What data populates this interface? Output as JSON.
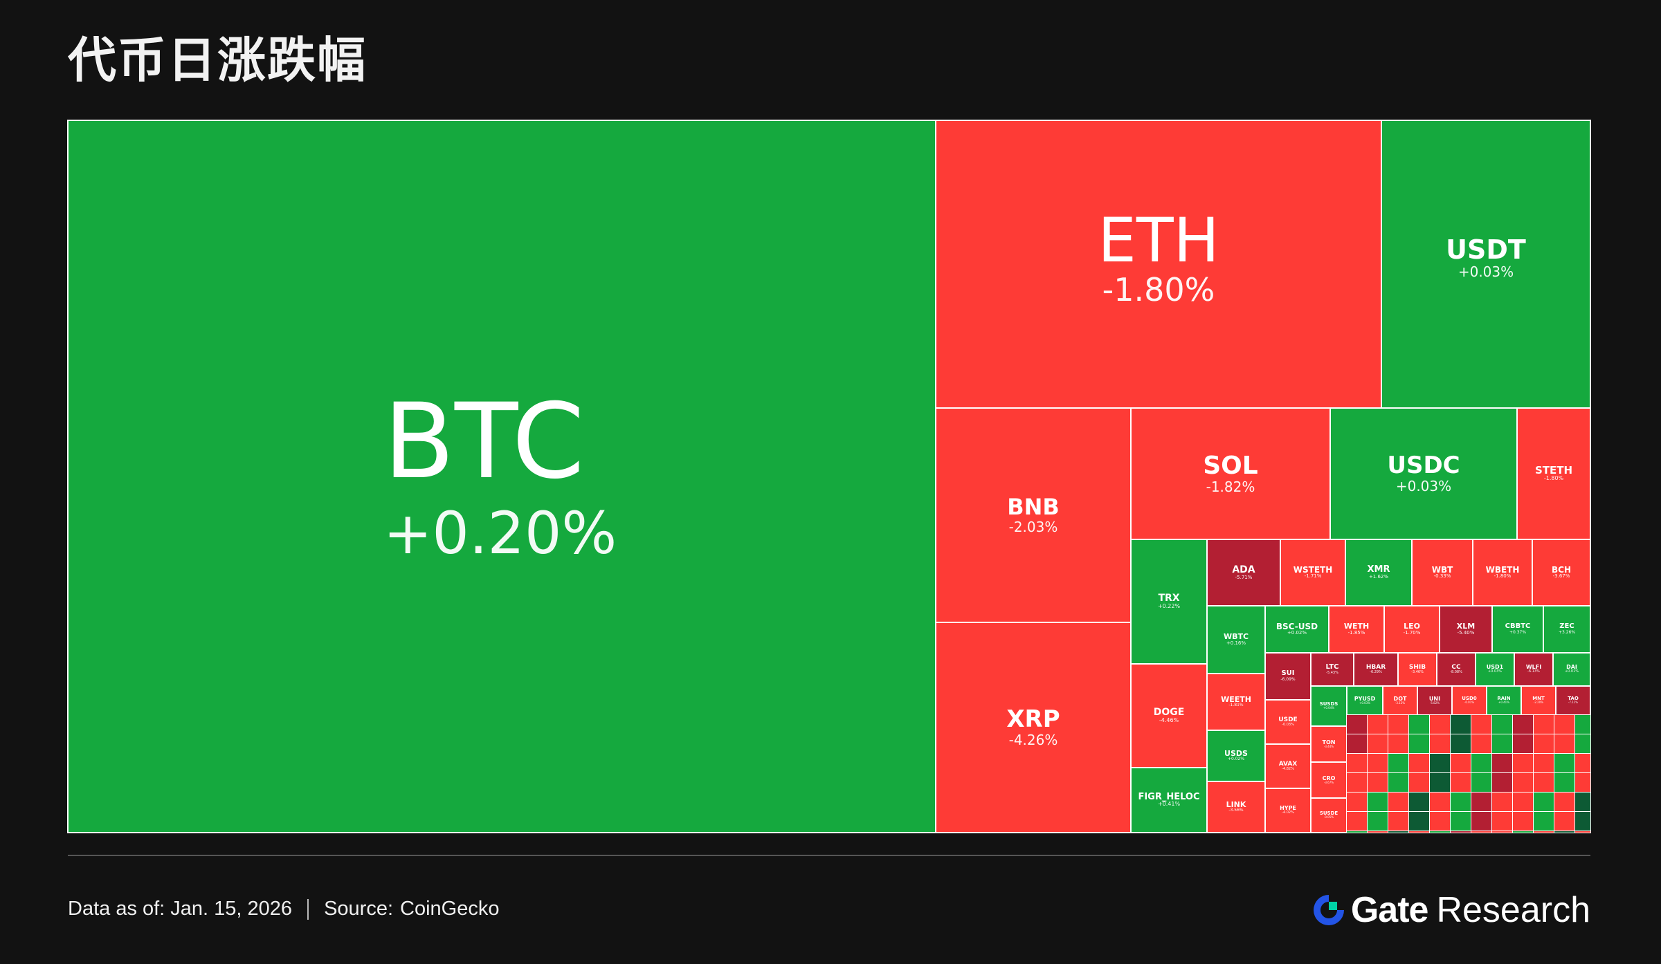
{
  "title": "代币日涨跌幅",
  "colors": {
    "up": "#15a93e",
    "down": "#fe3b36",
    "down_strong": "#b31f33",
    "up_strong": "#0d5a34",
    "background": "#121212",
    "brand_blue": "#2354e6"
  },
  "chart_data": {
    "type": "treemap",
    "tiles": [
      {
        "symbol": "BTC",
        "change": "+0.20%"
      },
      {
        "symbol": "ETH",
        "change": "-1.80%"
      },
      {
        "symbol": "USDT",
        "change": "+0.03%"
      },
      {
        "symbol": "BNB",
        "change": "-2.03%"
      },
      {
        "symbol": "SOL",
        "change": "-1.82%"
      },
      {
        "symbol": "USDC",
        "change": "+0.03%"
      },
      {
        "symbol": "STETH",
        "change": "-1.80%"
      },
      {
        "symbol": "XRP",
        "change": "-4.26%"
      },
      {
        "symbol": "TRX",
        "change": "+0.22%"
      },
      {
        "symbol": "DOGE",
        "change": "-4.46%"
      },
      {
        "symbol": "FIGR_HELOC",
        "change": "+0.41%"
      },
      {
        "symbol": "ADA",
        "change": "-5.71%"
      },
      {
        "symbol": "WSTETH",
        "change": "-1.71%"
      },
      {
        "symbol": "XMR",
        "change": "+1.62%"
      },
      {
        "symbol": "WBT",
        "change": "-0.33%"
      },
      {
        "symbol": "WBETH",
        "change": "-1.80%"
      },
      {
        "symbol": "BCH",
        "change": "-3.67%"
      },
      {
        "symbol": "WBTC",
        "change": "+0.16%"
      },
      {
        "symbol": "BSC-USD",
        "change": "+0.02%"
      },
      {
        "symbol": "WETH",
        "change": "-1.85%"
      },
      {
        "symbol": "LEO",
        "change": "-1.70%"
      },
      {
        "symbol": "XLM",
        "change": "-5.40%"
      },
      {
        "symbol": "CBBTC",
        "change": "+0.37%"
      },
      {
        "symbol": "ZEC",
        "change": "+3.26%"
      },
      {
        "symbol": "WEETH",
        "change": "-1.81%"
      },
      {
        "symbol": "SUI",
        "change": "-6.09%"
      },
      {
        "symbol": "LTC",
        "change": "-5.43%"
      },
      {
        "symbol": "HBAR",
        "change": "-6.29%"
      },
      {
        "symbol": "SHIB",
        "change": "-3.46%"
      },
      {
        "symbol": "CC",
        "change": "-8.08%"
      },
      {
        "symbol": "USD1",
        "change": "+0.03%"
      },
      {
        "symbol": "WLFI",
        "change": "-6.13%"
      },
      {
        "symbol": "DAI",
        "change": "+0.01%"
      },
      {
        "symbol": "USDS",
        "change": "+0.02%"
      },
      {
        "symbol": "USDE",
        "change": "-0.03%"
      },
      {
        "symbol": "AVAX",
        "change": "-4.82%"
      },
      {
        "symbol": "TON",
        "change": "-3.44%"
      },
      {
        "symbol": "LINK",
        "change": "-3.56%"
      },
      {
        "symbol": "HYPE",
        "change": "-4.02%"
      },
      {
        "symbol": "SUSDS",
        "change": "+0.04%"
      },
      {
        "symbol": "PYUSD",
        "change": "+0.03%"
      },
      {
        "symbol": "DOT",
        "change": "-3.12%"
      },
      {
        "symbol": "UNI",
        "change": "-5.82%"
      },
      {
        "symbol": "USD0",
        "change": "-0.01%"
      },
      {
        "symbol": "RAIN",
        "change": "+0.41%"
      },
      {
        "symbol": "MNT",
        "change": "-2.20%"
      },
      {
        "symbol": "TAO",
        "change": "-7.11%"
      },
      {
        "symbol": "CRO",
        "change": "-3.67%"
      },
      {
        "symbol": "SUSDE",
        "change": "-0.05%"
      }
    ]
  },
  "footer": {
    "date_label": "Data as of: Jan. 15, 2026",
    "source_label": "Source:",
    "source_value": "CoinGecko"
  },
  "brand": {
    "name": "Gate",
    "suffix": "Research",
    "logo_icon": "gate-logo-icon"
  }
}
